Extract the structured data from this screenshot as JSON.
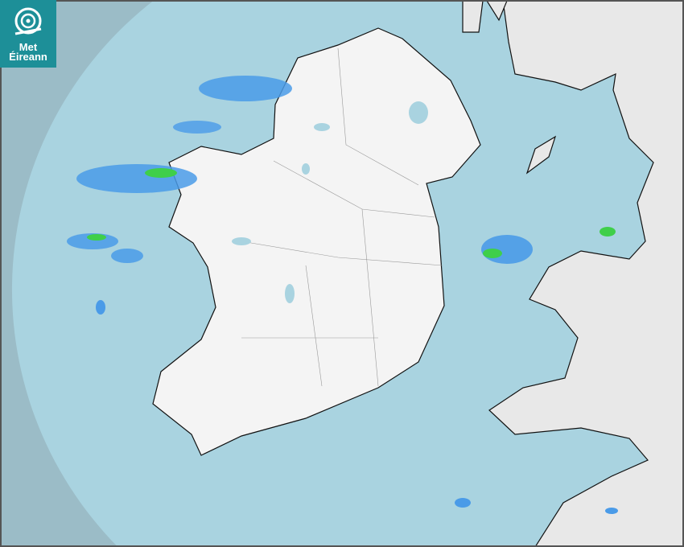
{
  "logo": {
    "line1": "Met",
    "line2": "Éireann",
    "icon": "spiral-logo-icon",
    "color": "#1d8f98"
  },
  "map": {
    "type": "rainfall-radar",
    "colors": {
      "outside_coverage": "#9bbcc7",
      "sea": "#a9d3e0",
      "land": "#f2f2f2",
      "rain_light": "#4a9be8",
      "rain_moderate": "#3fcf4a"
    }
  }
}
